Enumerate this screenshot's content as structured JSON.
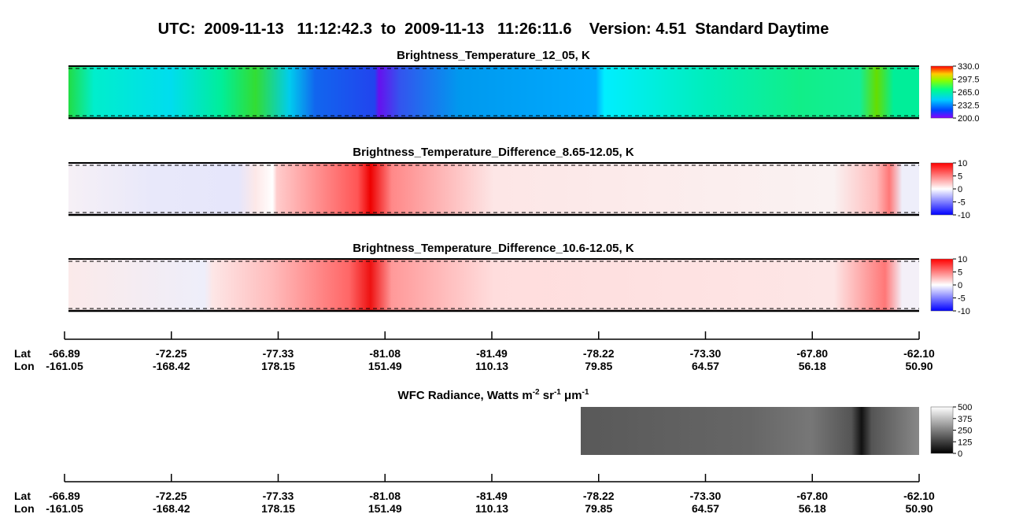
{
  "header": {
    "title": "UTC:  2009-11-13   11:12:42.3  to  2009-11-13   11:26:11.6    Version: 4.51  Standard Daytime"
  },
  "panels": [
    {
      "title": "Brightness_Temperature_12_05, K",
      "colorbar": {
        "lim": [
          200,
          330
        ],
        "ticks": [
          {
            "value": 330,
            "label": "330.0"
          },
          {
            "value": 297.5,
            "label": "297.5"
          },
          {
            "value": 265,
            "label": "265.0"
          },
          {
            "value": 232.5,
            "label": "232.5"
          },
          {
            "value": 200,
            "label": "200.0"
          }
        ]
      }
    },
    {
      "title": "Brightness_Temperature_Difference_8.65-12.05, K",
      "colorbar": {
        "lim": [
          -10,
          10
        ],
        "ticks": [
          10,
          5,
          0,
          -5,
          -10
        ]
      }
    },
    {
      "title": "Brightness_Temperature_Difference_10.6-12.05, K",
      "colorbar": {
        "lim": [
          -10,
          10
        ],
        "ticks": [
          10,
          5,
          0,
          -5,
          -10
        ]
      }
    }
  ],
  "wfc": {
    "title_parts": [
      "WFC Radiance, Watts m",
      "-2",
      " sr",
      "-1",
      " μm",
      "-1"
    ],
    "colorbar": {
      "lim": [
        0,
        500
      ],
      "ticks": [
        500,
        375,
        250,
        125,
        0
      ]
    }
  },
  "axes": [
    {
      "rows": [
        "Lat",
        "Lon"
      ],
      "ticks": [
        [
          "-66.89",
          "-161.05"
        ],
        [
          "-72.25",
          "-168.42"
        ],
        [
          "-77.33",
          "178.15"
        ],
        [
          "-81.08",
          "151.49"
        ],
        [
          "-81.49",
          "110.13"
        ],
        [
          "-78.22",
          "79.85"
        ],
        [
          "-73.30",
          "64.57"
        ],
        [
          "-67.80",
          "56.18"
        ],
        [
          "-62.10",
          "50.90"
        ]
      ]
    },
    {
      "rows": [
        "Lat",
        "Lon"
      ],
      "ticks": [
        [
          "-66.89",
          "-161.05"
        ],
        [
          "-72.25",
          "-168.42"
        ],
        [
          "-77.33",
          "178.15"
        ],
        [
          "-81.08",
          "151.49"
        ],
        [
          "-81.49",
          "110.13"
        ],
        [
          "-78.22",
          "79.85"
        ],
        [
          "-73.30",
          "64.57"
        ],
        [
          "-67.80",
          "56.18"
        ],
        [
          "-62.10",
          "50.90"
        ]
      ]
    }
  ]
}
